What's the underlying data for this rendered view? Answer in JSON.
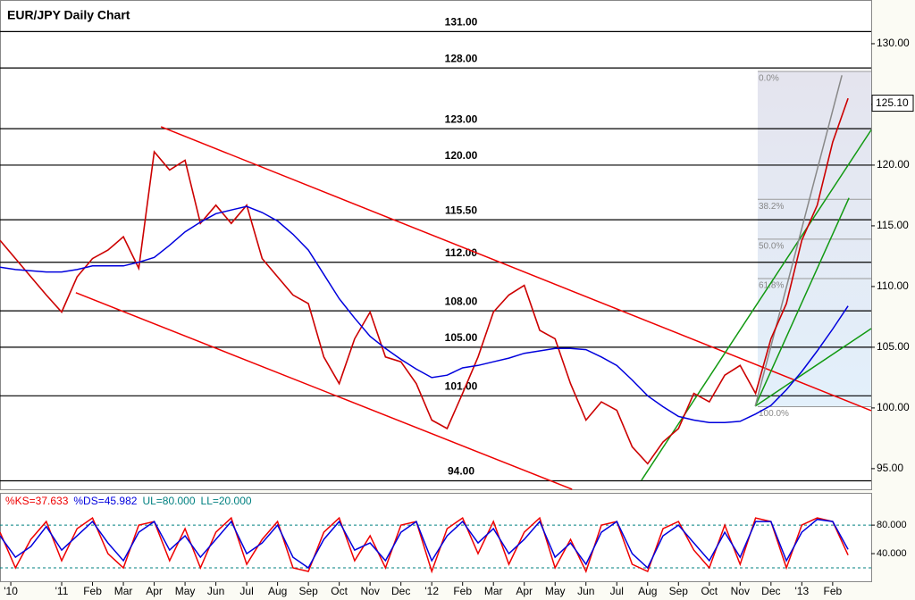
{
  "chart_data": [
    {
      "type": "line",
      "title": "EUR/JPY Daily Chart",
      "x": [
        -2,
        -1.5,
        -1,
        -0.5,
        0,
        0.5,
        1,
        1.5,
        2,
        2.5,
        3,
        3.5,
        4,
        4.5,
        5,
        5.5,
        6,
        6.5,
        7,
        7.5,
        8,
        8.5,
        9,
        9.5,
        10,
        10.5,
        11,
        11.5,
        12,
        12.5,
        13,
        13.5,
        14,
        14.5,
        15,
        15.5,
        16,
        16.5,
        17,
        17.5,
        18,
        18.5,
        19,
        19.5,
        20,
        20.5,
        21,
        21.5,
        22,
        22.5,
        23,
        23.5,
        24,
        24.5,
        25,
        25.5
      ],
      "series": [
        {
          "color": "#cc0000",
          "values": [
            113.8,
            112.3,
            110.8,
            109.3,
            107.9,
            110.8,
            112.3,
            113.0,
            114.1,
            111.5,
            121.1,
            119.6,
            120.4,
            115.2,
            116.7,
            115.2,
            116.7,
            112.3,
            110.8,
            109.3,
            108.6,
            104.2,
            102.0,
            105.7,
            107.9,
            104.2,
            103.8,
            102.0,
            99.0,
            98.3,
            101.2,
            104.2,
            107.9,
            109.3,
            110.1,
            106.4,
            105.7,
            102.0,
            99.0,
            100.5,
            99.8,
            96.8,
            95.4,
            97.2,
            98.3,
            101.2,
            100.5,
            102.7,
            103.5,
            101.2,
            105.7,
            108.6,
            113.8,
            116.7,
            121.9,
            125.5
          ]
        },
        {
          "color": "#0000dd",
          "values": [
            111.6,
            111.4,
            111.3,
            111.2,
            111.2,
            111.4,
            111.7,
            111.7,
            111.7,
            112.0,
            112.4,
            113.4,
            114.5,
            115.3,
            116.0,
            116.3,
            116.6,
            116.1,
            115.4,
            114.3,
            113.0,
            111.0,
            109.0,
            107.4,
            105.9,
            104.9,
            104.0,
            103.2,
            102.5,
            102.7,
            103.3,
            103.5,
            103.8,
            104.1,
            104.5,
            104.7,
            104.9,
            104.9,
            104.8,
            104.2,
            103.5,
            102.3,
            101.0,
            100.1,
            99.3,
            99.0,
            98.8,
            98.8,
            98.9,
            99.5,
            100.2,
            101.5,
            103.0,
            104.7,
            106.5,
            108.4
          ]
        }
      ],
      "xlim": [
        -2,
        26.25
      ],
      "ylim": [
        93.3,
        133.6
      ],
      "xticks": [
        {
          "value": -1.65,
          "label": "'10"
        },
        {
          "value": 0,
          "label": "'11"
        },
        {
          "value": 1,
          "label": "Feb"
        },
        {
          "value": 2,
          "label": "Mar"
        },
        {
          "value": 3,
          "label": "Apr"
        },
        {
          "value": 4,
          "label": "May"
        },
        {
          "value": 5,
          "label": "Jun"
        },
        {
          "value": 6,
          "label": "Jul"
        },
        {
          "value": 7,
          "label": "Aug"
        },
        {
          "value": 8,
          "label": "Sep"
        },
        {
          "value": 9,
          "label": "Oct"
        },
        {
          "value": 10,
          "label": "Nov"
        },
        {
          "value": 11,
          "label": "Dec"
        },
        {
          "value": 12,
          "label": "'12"
        },
        {
          "value": 13,
          "label": "Feb"
        },
        {
          "value": 14,
          "label": "Mar"
        },
        {
          "value": 15,
          "label": "Apr"
        },
        {
          "value": 16,
          "label": "May"
        },
        {
          "value": 17,
          "label": "Jun"
        },
        {
          "value": 18,
          "label": "Jul"
        },
        {
          "value": 19,
          "label": "Aug"
        },
        {
          "value": 20,
          "label": "Sep"
        },
        {
          "value": 21,
          "label": "Oct"
        },
        {
          "value": 22,
          "label": "Nov"
        },
        {
          "value": 23,
          "label": "Dec"
        },
        {
          "value": 24,
          "label": "'13"
        },
        {
          "value": 25,
          "label": "Feb"
        }
      ],
      "yticks": [
        {
          "value": 130,
          "label": "130.00"
        },
        {
          "value": 125,
          "label": "125.00"
        },
        {
          "value": 120,
          "label": "120.00"
        },
        {
          "value": 115,
          "label": "115.00"
        },
        {
          "value": 110,
          "label": "110.00"
        },
        {
          "value": 105,
          "label": "105.00"
        },
        {
          "value": 100,
          "label": "100.00"
        },
        {
          "value": 95,
          "label": "95.00"
        }
      ],
      "levels": [
        {
          "value": 131,
          "label": "131.00"
        },
        {
          "value": 128,
          "label": "128.00"
        },
        {
          "value": 123,
          "label": "123.00"
        },
        {
          "value": 120,
          "label": "120.00"
        },
        {
          "value": 115.5,
          "label": "115.50"
        },
        {
          "value": 112,
          "label": "112.00"
        },
        {
          "value": 108,
          "label": "108.00"
        },
        {
          "value": 105,
          "label": "105.00"
        },
        {
          "value": 101,
          "label": "101.00"
        },
        {
          "value": 94,
          "label": "94.00"
        }
      ],
      "trendlines": [
        {
          "color": "#ee0000",
          "x": [
            3.22,
            26.25
          ],
          "y": [
            123.16,
            99.78
          ]
        },
        {
          "color": "#ee0000",
          "x": [
            0.46,
            16.55
          ],
          "y": [
            109.49,
            93.3
          ]
        },
        {
          "color": "#119911",
          "x": [
            18.8,
            26.25
          ],
          "y": [
            94.04,
            122.9
          ]
        },
        {
          "color": "#119911",
          "x": [
            22.49,
            26.25
          ],
          "y": [
            100.15,
            106.54
          ]
        },
        {
          "color": "#119911",
          "x": [
            22.49,
            25.53
          ],
          "y": [
            100.15,
            117.3
          ]
        },
        {
          "color": "#888888",
          "x": [
            22.49,
            25.3
          ],
          "y": [
            100.15,
            127.4
          ]
        }
      ],
      "fibonacci": {
        "x": [
          22.57,
          26.25
        ],
        "levels": [
          {
            "value": 127.72,
            "label": "0.0%"
          },
          {
            "value": 117.18,
            "label": "38.2%"
          },
          {
            "value": 113.9,
            "label": "50.0%"
          },
          {
            "value": 110.66,
            "label": "61.8%"
          },
          {
            "value": 100.1,
            "label": "100.0%"
          }
        ]
      },
      "last_price": {
        "value": 125.1,
        "label": "125.10"
      }
    },
    {
      "type": "line",
      "legend": [
        {
          "text": "%KS=37.633",
          "color": "#ee0000"
        },
        {
          "text": "%DS=45.982",
          "color": "#0000dd"
        },
        {
          "text": "UL=80.000",
          "color": "#008080"
        },
        {
          "text": "LL=20.000",
          "color": "#008080"
        }
      ],
      "x": [
        -2,
        -1.5,
        -1,
        -0.5,
        0,
        0.5,
        1,
        1.5,
        2,
        2.5,
        3,
        3.5,
        4,
        4.5,
        5,
        5.5,
        6,
        6.5,
        7,
        7.5,
        8,
        8.5,
        9,
        9.5,
        10,
        10.5,
        11,
        11.5,
        12,
        12.5,
        13,
        13.5,
        14,
        14.5,
        15,
        15.5,
        16,
        16.5,
        17,
        17.5,
        18,
        18.5,
        19,
        19.5,
        20,
        20.5,
        21,
        21.5,
        22,
        22.5,
        23,
        23.5,
        24,
        24.5,
        25,
        25.5
      ],
      "series": [
        {
          "color": "#ee0000",
          "values": [
            70,
            20,
            60,
            85,
            30,
            75,
            90,
            40,
            20,
            80,
            85,
            30,
            75,
            20,
            70,
            90,
            25,
            60,
            85,
            20,
            15,
            70,
            90,
            30,
            65,
            20,
            80,
            85,
            15,
            75,
            90,
            40,
            85,
            25,
            70,
            90,
            20,
            60,
            15,
            80,
            85,
            25,
            15,
            75,
            85,
            45,
            20,
            80,
            25,
            90,
            85,
            20,
            80,
            90,
            85,
            38
          ]
        },
        {
          "color": "#0000dd",
          "values": [
            65,
            35,
            50,
            78,
            45,
            65,
            85,
            55,
            30,
            70,
            85,
            45,
            65,
            35,
            60,
            85,
            40,
            55,
            80,
            35,
            20,
            60,
            85,
            45,
            55,
            30,
            70,
            85,
            30,
            65,
            85,
            55,
            75,
            40,
            60,
            85,
            35,
            55,
            25,
            70,
            85,
            40,
            20,
            65,
            80,
            55,
            30,
            70,
            35,
            85,
            85,
            30,
            70,
            88,
            85,
            46
          ]
        }
      ],
      "xlim": [
        -2,
        26.25
      ],
      "ylim": [
        0,
        124
      ],
      "yticks": [
        {
          "value": 80,
          "label": "80.000"
        },
        {
          "value": 40,
          "label": "40.000"
        }
      ],
      "bands": [
        80,
        20
      ]
    }
  ]
}
